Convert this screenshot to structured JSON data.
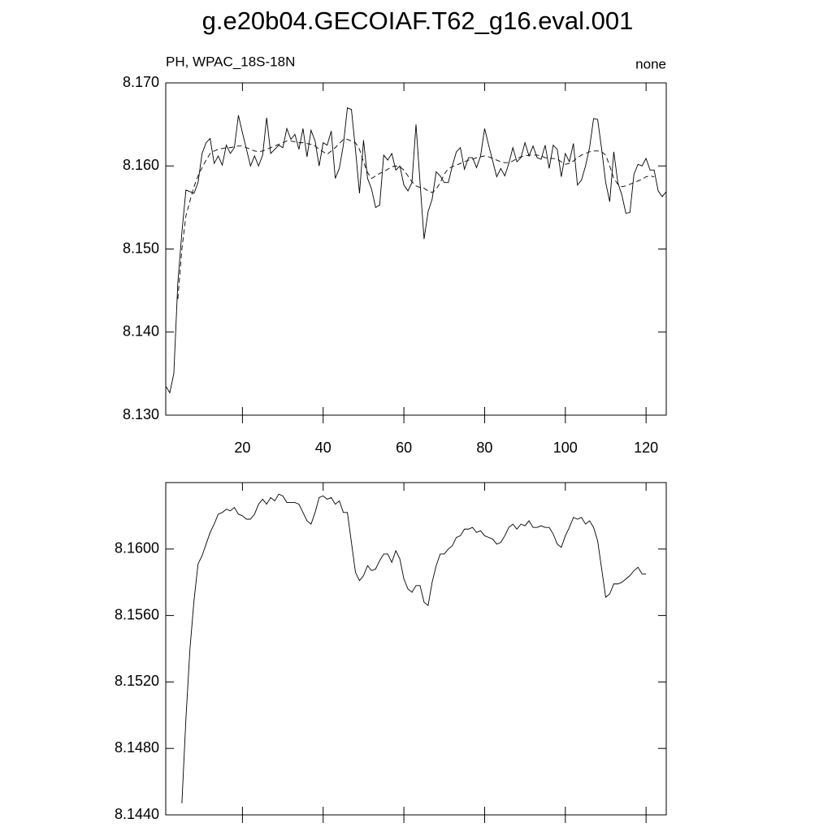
{
  "chart_data": [
    {
      "type": "line",
      "title": "g.e20b04.GECOIAF.T62_g16.eval.001",
      "left_string": "PH, WPAC_18S-18N",
      "right_string": "none",
      "x": [
        1,
        2,
        3,
        4,
        5,
        6,
        7,
        8,
        9,
        10,
        11,
        12,
        13,
        14,
        15,
        16,
        17,
        18,
        19,
        20,
        21,
        22,
        23,
        24,
        25,
        26,
        27,
        28,
        29,
        30,
        31,
        32,
        33,
        34,
        35,
        36,
        37,
        38,
        39,
        40,
        41,
        42,
        43,
        44,
        45,
        46,
        47,
        48,
        49,
        50,
        51,
        52,
        53,
        54,
        55,
        56,
        57,
        58,
        59,
        60,
        61,
        62,
        63,
        64,
        65,
        66,
        67,
        68,
        69,
        70,
        71,
        72,
        73,
        74,
        75,
        76,
        77,
        78,
        79,
        80,
        81,
        82,
        83,
        84,
        85,
        86,
        87,
        88,
        89,
        90,
        91,
        92,
        93,
        94,
        95,
        96,
        97,
        98,
        99,
        100,
        101,
        102,
        103,
        104,
        105,
        106,
        107,
        108,
        109,
        110,
        111,
        112,
        113,
        114,
        115,
        116,
        117,
        118,
        119,
        120,
        121,
        122,
        123,
        124,
        125
      ],
      "series": [
        {
          "color": "#000000",
          "style": "solid",
          "values": [
            8.1335,
            8.1327,
            8.135,
            8.146,
            8.152,
            8.1571,
            8.1569,
            8.1567,
            8.158,
            8.1615,
            8.1628,
            8.1633,
            8.1603,
            8.1612,
            8.1601,
            8.1625,
            8.1615,
            8.1622,
            8.1661,
            8.164,
            8.162,
            8.16,
            8.1612,
            8.16,
            8.1613,
            8.1658,
            8.1615,
            8.162,
            8.1625,
            8.1622,
            8.1645,
            8.1632,
            8.1638,
            8.162,
            8.1645,
            8.1611,
            8.1643,
            8.163,
            8.16,
            8.1628,
            8.1625,
            8.1642,
            8.1585,
            8.1597,
            8.1625,
            8.167,
            8.1668,
            8.162,
            8.1567,
            8.1631,
            8.1585,
            8.1572,
            8.155,
            8.1553,
            8.1613,
            8.1607,
            8.1615,
            8.1595,
            8.16,
            8.1577,
            8.157,
            8.158,
            8.165,
            8.158,
            8.1512,
            8.1545,
            8.156,
            8.1593,
            8.1588,
            8.158,
            8.158,
            8.16,
            8.1617,
            8.1622,
            8.1596,
            8.161,
            8.161,
            8.1598,
            8.1612,
            8.1645,
            8.1625,
            8.1606,
            8.1587,
            8.1597,
            8.1588,
            8.1603,
            8.1622,
            8.1605,
            8.161,
            8.1628,
            8.1612,
            8.1624,
            8.161,
            8.1608,
            8.1625,
            8.1597,
            8.1625,
            8.162,
            8.1587,
            8.1615,
            8.1605,
            8.1627,
            8.1577,
            8.1583,
            8.16,
            8.1622,
            8.1657,
            8.1656,
            8.162,
            8.158,
            8.1557,
            8.1617,
            8.158,
            8.1565,
            8.1543,
            8.1544,
            8.159,
            8.1602,
            8.16,
            8.1609,
            8.1595,
            8.1595,
            8.157,
            8.1563,
            8.1569
          ]
        },
        {
          "color": "#000000",
          "style": "dashed",
          "values": [
            null,
            null,
            null,
            8.144,
            8.15,
            8.154,
            8.1558,
            8.1575,
            8.1588,
            8.1598,
            8.1607,
            8.1615,
            8.1618,
            8.162,
            8.1621,
            8.1622,
            8.1622,
            8.1623,
            8.1624,
            8.1624,
            8.1622,
            8.162,
            8.1618,
            8.1617,
            8.1618,
            8.162,
            8.1622,
            8.1624,
            8.1626,
            8.1628,
            8.163,
            8.163,
            8.1629,
            8.1628,
            8.1628,
            8.1627,
            8.1626,
            8.1624,
            8.162,
            8.1617,
            8.1614,
            8.1618,
            8.1622,
            8.1627,
            8.1632,
            8.1632,
            8.163,
            8.1628,
            8.162,
            8.1605,
            8.1592,
            8.1585,
            8.1588,
            8.1591,
            8.1593,
            8.1596,
            8.1599,
            8.16,
            8.1599,
            8.1595,
            8.1588,
            8.1581,
            8.1576,
            8.1574,
            8.1573,
            8.157,
            8.1568,
            8.1572,
            8.158,
            8.159,
            8.1597,
            8.1599,
            8.1601,
            8.1603,
            8.1605,
            8.1607,
            8.1608,
            8.161,
            8.1611,
            8.1612,
            8.1611,
            8.1609,
            8.1607,
            8.1605,
            8.1604,
            8.1604,
            8.1606,
            8.1609,
            8.1611,
            8.1612,
            8.1613,
            8.1613,
            8.1613,
            8.1612,
            8.161,
            8.1609,
            8.1609,
            8.1608,
            8.1605,
            8.1602,
            8.1603,
            8.1606,
            8.161,
            8.1613,
            8.1615,
            8.1617,
            8.1618,
            8.1618,
            8.1617,
            8.1613,
            8.16,
            8.1585,
            8.1578,
            8.1575,
            8.1576,
            8.1578,
            8.158,
            8.1582,
            8.1584,
            8.1587,
            8.1588,
            8.1587,
            null,
            null,
            null
          ]
        }
      ],
      "xlim": [
        1,
        125
      ],
      "xticks": [
        20,
        40,
        60,
        80,
        100,
        120
      ],
      "ylim": [
        8.13,
        8.17
      ],
      "yticks": [
        {
          "value": 8.13,
          "label": "8.130"
        },
        {
          "value": 8.14,
          "label": "8.140"
        },
        {
          "value": 8.15,
          "label": "8.150"
        },
        {
          "value": 8.16,
          "label": "8.160"
        },
        {
          "value": 8.17,
          "label": "8.170"
        }
      ]
    },
    {
      "type": "line",
      "x": [
        5,
        6,
        7,
        8,
        9,
        10,
        11,
        12,
        13,
        14,
        15,
        16,
        17,
        18,
        19,
        20,
        21,
        22,
        23,
        24,
        25,
        26,
        27,
        28,
        29,
        30,
        31,
        32,
        33,
        34,
        35,
        36,
        37,
        38,
        39,
        40,
        41,
        42,
        43,
        44,
        45,
        46,
        47,
        48,
        49,
        50,
        51,
        52,
        53,
        54,
        55,
        56,
        57,
        58,
        59,
        60,
        61,
        62,
        63,
        64,
        65,
        66,
        67,
        68,
        69,
        70,
        71,
        72,
        73,
        74,
        75,
        76,
        77,
        78,
        79,
        80,
        81,
        82,
        83,
        84,
        85,
        86,
        87,
        88,
        89,
        90,
        91,
        92,
        93,
        94,
        95,
        96,
        97,
        98,
        99,
        100,
        101,
        102,
        103,
        104,
        105,
        106,
        107,
        108,
        109,
        110,
        111,
        112,
        113,
        114,
        115,
        116,
        117,
        118,
        119,
        120
      ],
      "series": [
        {
          "color": "#000000",
          "style": "solid",
          "values": [
            8.1447,
            8.1498,
            8.154,
            8.1569,
            8.1591,
            8.1596,
            8.1603,
            8.161,
            8.1615,
            8.1621,
            8.1622,
            8.1624,
            8.1623,
            8.1625,
            8.1621,
            8.162,
            8.1618,
            8.1618,
            8.1621,
            8.1627,
            8.163,
            8.1627,
            8.1631,
            8.1629,
            8.1633,
            8.1632,
            8.1628,
            8.1628,
            8.1628,
            8.1627,
            8.1622,
            8.1617,
            8.1615,
            8.1622,
            8.1631,
            8.1632,
            8.163,
            8.1631,
            8.1627,
            8.1629,
            8.1622,
            8.1622,
            8.1604,
            8.1586,
            8.1581,
            8.1584,
            8.159,
            8.1587,
            8.1588,
            8.1593,
            8.1597,
            8.1597,
            8.1592,
            8.1599,
            8.1594,
            8.1582,
            8.1576,
            8.1574,
            8.1578,
            8.1578,
            8.1568,
            8.1566,
            8.158,
            8.159,
            8.1597,
            8.1597,
            8.16,
            8.1602,
            8.1607,
            8.1608,
            8.1612,
            8.1612,
            8.1613,
            8.161,
            8.1611,
            8.1608,
            8.1607,
            8.1606,
            8.1603,
            8.1604,
            8.1608,
            8.1613,
            8.1615,
            8.1612,
            8.1615,
            8.1614,
            8.1617,
            8.1613,
            8.1613,
            8.1614,
            8.1613,
            8.1613,
            8.1609,
            8.1603,
            8.1601,
            8.1608,
            8.1613,
            8.1619,
            8.1618,
            8.1619,
            8.1615,
            8.1617,
            8.1613,
            8.1605,
            8.1588,
            8.1571,
            8.1573,
            8.1579,
            8.1579,
            8.158,
            8.1582,
            8.1584,
            8.1587,
            8.1589,
            8.1585,
            8.1585
          ]
        }
      ],
      "xlim": [
        1,
        125
      ],
      "ylim": [
        8.144,
        8.164
      ],
      "yticks": [
        {
          "value": 8.144,
          "label": "8.1440"
        },
        {
          "value": 8.148,
          "label": "8.1480"
        },
        {
          "value": 8.152,
          "label": "8.1520"
        },
        {
          "value": 8.156,
          "label": "8.1560"
        },
        {
          "value": 8.16,
          "label": "8.1600"
        }
      ]
    }
  ]
}
